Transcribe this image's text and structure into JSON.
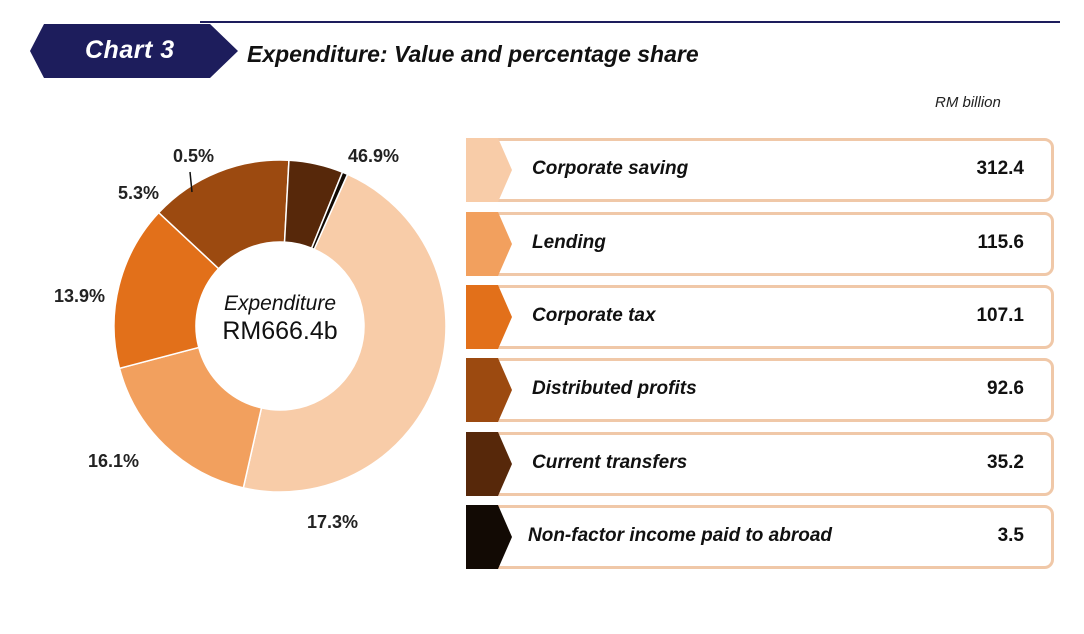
{
  "header": {
    "chart_tag": "Chart",
    "chart_number": "3",
    "title": "Expenditure: Value and percentage share",
    "unit": "RM billion"
  },
  "colors": {
    "navy": "#1d1d5c",
    "border": "#f0c8a8"
  },
  "chart_data": {
    "type": "pie",
    "title": "Expenditure: Value and percentage share",
    "center_label": "Expenditure",
    "center_value": "RM666.4b",
    "unit": "RM billion",
    "categories": [
      "Corporate saving",
      "Lending",
      "Corporate tax",
      "Distributed profits",
      "Current transfers",
      "Non-factor income paid to abroad"
    ],
    "values": [
      312.4,
      115.6,
      107.1,
      92.6,
      35.2,
      3.5
    ],
    "value_labels": [
      "312.4",
      "115.6",
      "107.1",
      "92.6",
      "35.2",
      "3.5"
    ],
    "percentages": [
      46.9,
      17.3,
      16.1,
      13.9,
      5.3,
      0.5
    ],
    "percent_labels": [
      "46.9%",
      "17.3%",
      "16.1%",
      "13.9%",
      "5.3%",
      "0.5%"
    ],
    "colors": [
      "#f8cca8",
      "#f2a05e",
      "#e2701a",
      "#9c4a10",
      "#57280a",
      "#120a04"
    ]
  }
}
